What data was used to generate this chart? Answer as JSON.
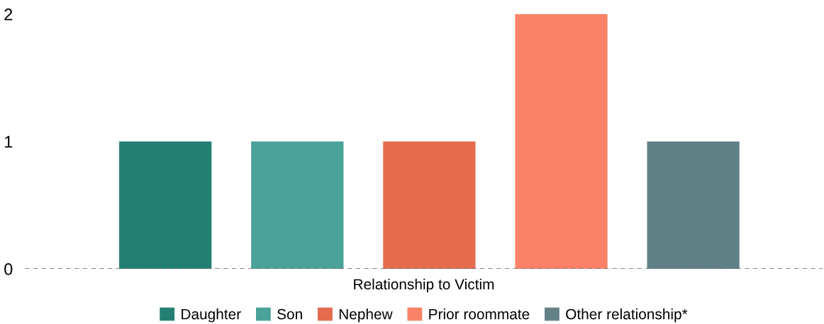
{
  "chart_data": {
    "type": "bar",
    "xlabel": "Relationship to Victim",
    "categories": [
      null,
      null,
      null,
      null,
      null
    ],
    "series": [
      {
        "name": "Daughter",
        "color": "#237f74",
        "values": [
          1,
          null,
          null,
          null,
          null
        ]
      },
      {
        "name": "Son",
        "color": "#4aa29a",
        "values": [
          null,
          1,
          null,
          null,
          null
        ]
      },
      {
        "name": "Nephew",
        "color": "#e56b4e",
        "values": [
          null,
          null,
          1,
          null,
          null
        ]
      },
      {
        "name": "Prior roommate",
        "color": "#fa8266",
        "values": [
          null,
          null,
          null,
          2,
          null
        ]
      },
      {
        "name": "Other relationship*",
        "color": "#618187",
        "values": [
          null,
          null,
          null,
          null,
          1
        ]
      }
    ],
    "ylim": [
      0,
      2
    ],
    "yticks": [
      0,
      1,
      2
    ],
    "ref_lines": [
      {
        "axis": "y",
        "value": 0,
        "color": "#666666",
        "line_style": "dashed"
      }
    ],
    "tick_labels": "y",
    "legend": "bottom",
    "grid": false
  }
}
